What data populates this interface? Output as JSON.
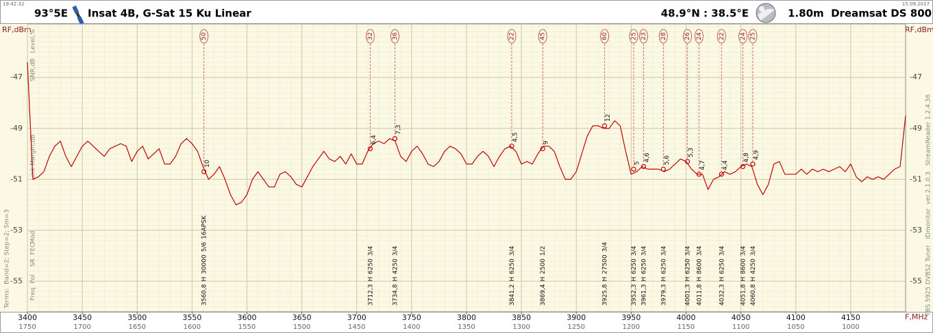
{
  "chart_data": {
    "type": "line",
    "time": "19:42:32",
    "date": "15.09.2017",
    "satellite_position": "93°5E",
    "title": "Insat 4B, G-Sat 15 Ku Linear",
    "location": "48.9°N : 38.5°E",
    "dish": "1.80m  Dreamsat DS 800",
    "ylabel": "RF,dBm",
    "xlabel": "F,MHz",
    "row_labels": [
      "Level,%",
      "SNR,dB",
      "Link Margin,dB",
      "Mod",
      "FEC",
      "SR",
      "Pol",
      "Freq"
    ],
    "terms": "Terms:  Band=2; Step=2; Sm=3",
    "footer": "TBS 5925 DVBS2 Tuner   IDmonitor  ver.2.1.0.3   StreamReader 1.2.4.36",
    "xlim": [
      3400,
      4200
    ],
    "xticks": [
      3400,
      3450,
      3500,
      3550,
      3600,
      3650,
      3700,
      3750,
      3800,
      3850,
      3900,
      3950,
      4000,
      4050,
      4100,
      4150
    ],
    "x2lim": [
      1750,
      950
    ],
    "x2ticks": [
      1750,
      1700,
      1650,
      1600,
      1550,
      1500,
      1450,
      1400,
      1350,
      1300,
      1250,
      1200,
      1150,
      1100,
      1050,
      1000
    ],
    "ylim": [
      -56.2,
      -44.9
    ],
    "yticks": [
      -47,
      -49,
      -51,
      -53,
      -55
    ],
    "grid": true,
    "x": [
      3400,
      3405,
      3410,
      3415,
      3420,
      3425,
      3430,
      3435,
      3440,
      3445,
      3450,
      3455,
      3460,
      3465,
      3470,
      3475,
      3480,
      3485,
      3490,
      3495,
      3500,
      3505,
      3510,
      3515,
      3520,
      3525,
      3530,
      3535,
      3540,
      3545,
      3550,
      3555,
      3560,
      3565,
      3570,
      3575,
      3580,
      3585,
      3590,
      3595,
      3600,
      3605,
      3610,
      3615,
      3620,
      3625,
      3630,
      3635,
      3640,
      3645,
      3650,
      3655,
      3660,
      3665,
      3670,
      3675,
      3680,
      3685,
      3690,
      3695,
      3700,
      3705,
      3710,
      3715,
      3720,
      3725,
      3730,
      3735,
      3740,
      3745,
      3750,
      3755,
      3760,
      3765,
      3770,
      3775,
      3780,
      3785,
      3790,
      3795,
      3800,
      3805,
      3810,
      3815,
      3820,
      3825,
      3830,
      3835,
      3840,
      3845,
      3850,
      3855,
      3860,
      3865,
      3870,
      3875,
      3880,
      3885,
      3890,
      3895,
      3900,
      3905,
      3910,
      3915,
      3920,
      3925,
      3930,
      3935,
      3940,
      3945,
      3950,
      3955,
      3960,
      3965,
      3970,
      3975,
      3980,
      3985,
      3990,
      3995,
      4000,
      4005,
      4010,
      4015,
      4020,
      4025,
      4030,
      4035,
      4040,
      4045,
      4050,
      4055,
      4060,
      4065,
      4070,
      4075,
      4080,
      4085,
      4090,
      4095,
      4100,
      4105,
      4110,
      4115,
      4120,
      4125,
      4130,
      4135,
      4140,
      4145,
      4150,
      4155,
      4160,
      4165,
      4170,
      4175,
      4180,
      4185,
      4190,
      4195,
      4200
    ],
    "series": [
      {
        "color": "#c00000",
        "values": [
          -46.4,
          -51.0,
          -50.9,
          -50.7,
          -50.1,
          -49.7,
          -49.5,
          -50.1,
          -50.5,
          -50.1,
          -49.7,
          -49.5,
          -49.7,
          -49.9,
          -50.1,
          -49.8,
          -49.7,
          -49.6,
          -49.7,
          -50.3,
          -49.9,
          -49.7,
          -50.2,
          -50.0,
          -49.8,
          -50.4,
          -50.4,
          -50.1,
          -49.6,
          -49.4,
          -49.6,
          -49.9,
          -50.5,
          -51.0,
          -50.8,
          -50.5,
          -51.0,
          -51.6,
          -52.0,
          -51.9,
          -51.6,
          -51.0,
          -50.7,
          -51.0,
          -51.3,
          -51.3,
          -50.8,
          -50.7,
          -50.9,
          -51.2,
          -51.3,
          -50.9,
          -50.5,
          -50.2,
          -49.9,
          -50.2,
          -50.3,
          -50.1,
          -50.4,
          -50.0,
          -50.4,
          -50.4,
          -49.9,
          -49.6,
          -49.5,
          -49.6,
          -49.4,
          -49.5,
          -50.1,
          -50.3,
          -49.9,
          -49.7,
          -50.0,
          -50.4,
          -50.5,
          -50.3,
          -49.9,
          -49.7,
          -49.8,
          -50.0,
          -50.4,
          -50.4,
          -50.1,
          -49.9,
          -50.1,
          -50.5,
          -50.1,
          -49.8,
          -49.7,
          -49.9,
          -50.4,
          -50.3,
          -50.4,
          -50.0,
          -49.7,
          -49.7,
          -49.9,
          -50.5,
          -51.0,
          -51.0,
          -50.7,
          -50.0,
          -49.3,
          -48.9,
          -48.9,
          -49.0,
          -49.0,
          -48.7,
          -48.9,
          -49.9,
          -50.8,
          -50.7,
          -50.5,
          -50.6,
          -50.6,
          -50.6,
          -50.7,
          -50.6,
          -50.4,
          -50.2,
          -50.3,
          -50.6,
          -50.8,
          -50.8,
          -51.4,
          -51.0,
          -50.9,
          -50.7,
          -50.8,
          -50.7,
          -50.5,
          -50.4,
          -50.5,
          -51.2,
          -51.6,
          -51.2,
          -50.4,
          -50.3,
          -50.8,
          -50.8,
          -50.8,
          -50.6,
          -50.8,
          -50.6,
          -50.7,
          -50.6,
          -50.7,
          -50.6,
          -50.5,
          -50.7,
          -50.4,
          -50.9,
          -51.1,
          -50.9,
          -51.0,
          -50.9,
          -51.0,
          -50.8,
          -50.6,
          -50.5,
          -48.5
        ]
      }
    ],
    "transponders": [
      {
        "freq": {
          "value": 3560.8,
          "label": "3560,8"
        },
        "pol": "H",
        "sr": 30000,
        "fec": "5/6",
        "mod": "16APSK",
        "level": 50,
        "snr": 10,
        "rf": -50.7
      },
      {
        "freq": {
          "value": 3712.3,
          "label": "3712,3"
        },
        "pol": "H",
        "sr": 6250,
        "fec": "3/4",
        "level": 32,
        "snr": {
          "value": 6.4,
          "label": "6,4"
        },
        "rf": -49.8
      },
      {
        "freq": {
          "value": 3734.8,
          "label": "3734,8"
        },
        "pol": "H",
        "sr": 4250,
        "fec": "3/4",
        "level": 36,
        "snr": {
          "value": 7.3,
          "label": "7,3"
        },
        "rf": -49.4
      },
      {
        "freq": {
          "value": 3841.2,
          "label": "3841,2"
        },
        "pol": "H",
        "sr": 6250,
        "fec": "3/4",
        "level": 22,
        "snr": {
          "value": 4.5,
          "label": "4,5"
        },
        "rf": -49.7
      },
      {
        "freq": {
          "value": 3869.4,
          "label": "3869,4"
        },
        "pol": "H",
        "sr": 2500,
        "fec": "1/2",
        "level": 45,
        "snr": 9,
        "rf": -49.8
      },
      {
        "freq": {
          "value": 3925.8,
          "label": "3925,8"
        },
        "pol": "H",
        "sr": 27500,
        "fec": "3/4",
        "level": 60,
        "snr": 12,
        "rf": -48.9
      },
      {
        "freq": {
          "value": 3952.3,
          "label": "3952,3"
        },
        "pol": "H",
        "sr": 6250,
        "fec": "3/4",
        "level": 25,
        "snr": 5,
        "rf": -50.6
      },
      {
        "freq": {
          "value": 3961.3,
          "label": "3961,3"
        },
        "pol": "H",
        "sr": 6250,
        "fec": "3/4",
        "level": 23,
        "snr": {
          "value": 4.6,
          "label": "4,6"
        },
        "rf": -50.5
      },
      {
        "freq": {
          "value": 3979.3,
          "label": "3979,3"
        },
        "pol": "H",
        "sr": 6250,
        "fec": "3/4",
        "level": 28,
        "snr": {
          "value": 5.6,
          "label": "5,6"
        },
        "rf": -50.6
      },
      {
        "freq": {
          "value": 4001.3,
          "label": "4001,3"
        },
        "pol": "H",
        "sr": 6250,
        "fec": "3/4",
        "level": 26,
        "snr": {
          "value": 5.3,
          "label": "5,3"
        },
        "rf": -50.3
      },
      {
        "freq": {
          "value": 4011.8,
          "label": "4011,8"
        },
        "pol": "H",
        "sr": 8600,
        "fec": "3/4",
        "level": 24,
        "snr": {
          "value": 4.7,
          "label": "4,7"
        },
        "rf": -50.8
      },
      {
        "freq": {
          "value": 4032.3,
          "label": "4032,3"
        },
        "pol": "H",
        "sr": 6250,
        "fec": "3/4",
        "level": 22,
        "snr": {
          "value": 4.4,
          "label": "4,4"
        },
        "rf": -50.8
      },
      {
        "freq": {
          "value": 4051.8,
          "label": "4051,8"
        },
        "pol": "H",
        "sr": 8600,
        "fec": "3/4",
        "level": 24,
        "snr": {
          "value": 4.8,
          "label": "4,8"
        },
        "rf": -50.5
      },
      {
        "freq": {
          "value": 4060.8,
          "label": "4060,8"
        },
        "pol": "H",
        "sr": 4250,
        "fec": "3/4",
        "level": 25,
        "snr": {
          "value": 4.9,
          "label": "4,9"
        },
        "rf": -50.4
      }
    ]
  }
}
